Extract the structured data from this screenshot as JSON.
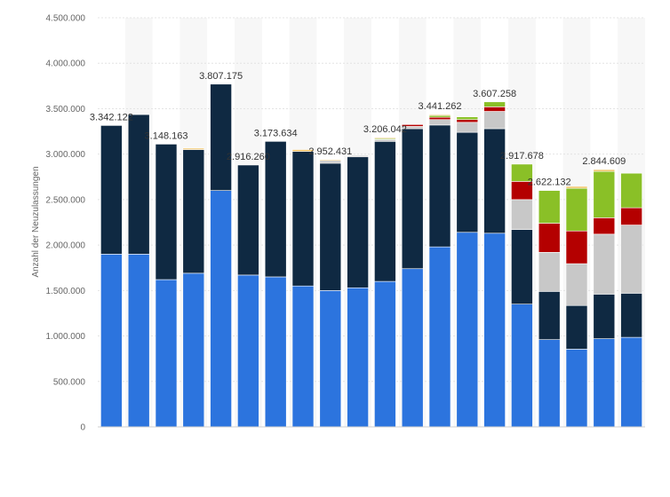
{
  "chart_data": {
    "type": "bar",
    "stacked": true,
    "ylabel": "Anzahl der Neuzulassungen",
    "ylim": [
      0,
      4500000
    ],
    "yticks": [
      0,
      500000,
      1000000,
      1500000,
      2000000,
      2500000,
      3000000,
      3500000,
      4000000,
      4500000
    ],
    "ytick_labels": [
      "0",
      "500.000",
      "1.000.000",
      "1.500.000",
      "2.000.000",
      "2.500.000",
      "3.000.000",
      "3.500.000",
      "4.000.000",
      "4.500.000"
    ],
    "grid": true,
    "legend": "none",
    "colors": [
      "#2c74de",
      "#0f2942",
      "#c8c8c8",
      "#b40000",
      "#8ac027",
      "#f0c060"
    ],
    "bars": [
      {
        "segments": [
          1900000,
          1415000,
          0,
          0,
          0,
          0
        ],
        "label": "3.342.122"
      },
      {
        "segments": [
          1900000,
          1535000,
          0,
          0,
          0,
          0
        ],
        "label": ""
      },
      {
        "segments": [
          1620000,
          1490000,
          0,
          0,
          0,
          0
        ],
        "label": "3.148.163"
      },
      {
        "segments": [
          1690000,
          1360000,
          0,
          0,
          0,
          15000
        ],
        "label": ""
      },
      {
        "segments": [
          2600000,
          1170000,
          0,
          0,
          0,
          0
        ],
        "label": "3.807.175"
      },
      {
        "segments": [
          1670000,
          1210000,
          0,
          0,
          0,
          0
        ],
        "label": "2.916.260"
      },
      {
        "segments": [
          1650000,
          1490000,
          0,
          0,
          0,
          0
        ],
        "label": "3.173.634"
      },
      {
        "segments": [
          1550000,
          1480000,
          0,
          0,
          0,
          20000
        ],
        "label": ""
      },
      {
        "segments": [
          1500000,
          1400000,
          30000,
          0,
          0,
          10000
        ],
        "label": "2.952.431"
      },
      {
        "segments": [
          1530000,
          1440000,
          15000,
          0,
          0,
          0
        ],
        "label": ""
      },
      {
        "segments": [
          1600000,
          1540000,
          20000,
          0,
          10000,
          10000
        ],
        "label": "3.206.042"
      },
      {
        "segments": [
          1740000,
          1540000,
          25000,
          20000,
          0,
          0
        ],
        "label": ""
      },
      {
        "segments": [
          1980000,
          1340000,
          60000,
          25000,
          20000,
          10000
        ],
        "label": "3.441.262"
      },
      {
        "segments": [
          2140000,
          1100000,
          110000,
          30000,
          30000,
          0
        ],
        "label": ""
      },
      {
        "segments": [
          2130000,
          1150000,
          190000,
          50000,
          55000,
          0
        ],
        "label": "3.607.258"
      },
      {
        "segments": [
          1350000,
          820000,
          330000,
          200000,
          190000,
          0
        ],
        "label": "2.917.678"
      },
      {
        "segments": [
          960000,
          530000,
          430000,
          320000,
          360000,
          0
        ],
        "label": "2.622.132"
      },
      {
        "segments": [
          855000,
          480000,
          460000,
          360000,
          470000,
          20000
        ],
        "label": ""
      },
      {
        "segments": [
          970000,
          490000,
          660000,
          180000,
          510000,
          20000
        ],
        "label": "2.844.609"
      },
      {
        "segments": [
          985000,
          485000,
          750000,
          190000,
          380000,
          0
        ],
        "label": ""
      }
    ]
  }
}
